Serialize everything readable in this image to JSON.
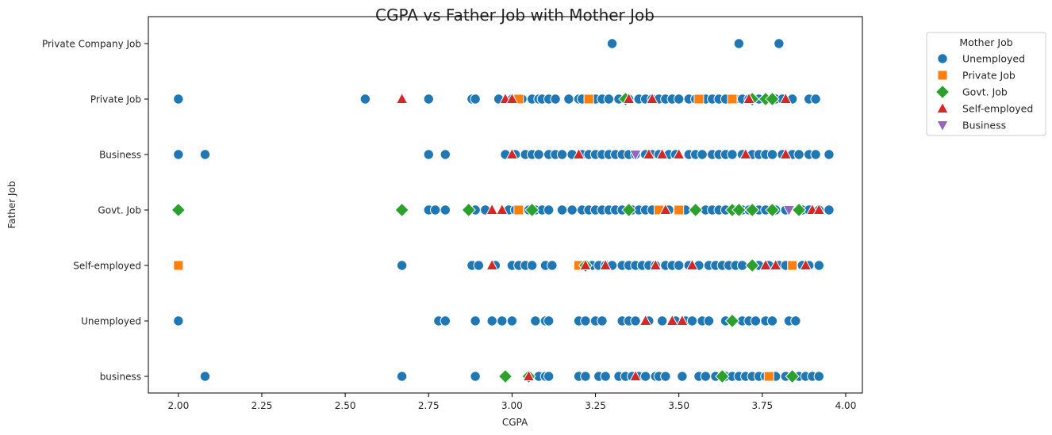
{
  "chart_data": {
    "type": "scatter",
    "title": "CGPA vs Father Job with Mother Job",
    "xlabel": "CGPA",
    "ylabel": "Father Job",
    "xlim": [
      1.91,
      4.05
    ],
    "x_ticks": [
      "2.00",
      "2.25",
      "2.50",
      "2.75",
      "3.00",
      "3.25",
      "3.50",
      "3.75",
      "4.00"
    ],
    "y_categories": [
      "Private Company Job",
      "Private Job",
      "Business",
      "Govt. Job",
      "Self-employed",
      "Unemployed",
      "business"
    ],
    "legend": {
      "title": "Mother Job",
      "position": "outside-upper-right",
      "entries": [
        {
          "label": "Unemployed",
          "color": "#1f77b4",
          "marker": "circle"
        },
        {
          "label": "Private Job",
          "color": "#ff7f0e",
          "marker": "square"
        },
        {
          "label": "Govt. Job",
          "color": "#2ca02c",
          "marker": "diamond"
        },
        {
          "label": "Self-employed",
          "color": "#d62728",
          "marker": "triangle-up"
        },
        {
          "label": "Business",
          "color": "#9467bd",
          "marker": "triangle-down"
        }
      ]
    },
    "series": [
      {
        "name": "Unemployed",
        "points": {
          "Private Company Job": [
            3.3,
            3.68,
            3.8
          ],
          "Private Job": [
            2.0,
            2.56,
            2.75,
            2.88,
            2.89,
            2.96,
            3.0,
            3.03,
            3.06,
            3.08,
            3.09,
            3.11,
            3.13,
            3.17,
            3.2,
            3.21,
            3.23,
            3.25,
            3.27,
            3.29,
            3.32,
            3.35,
            3.38,
            3.4,
            3.42,
            3.44,
            3.46,
            3.48,
            3.5,
            3.53,
            3.55,
            3.58,
            3.6,
            3.62,
            3.64,
            3.67,
            3.69,
            3.71,
            3.74,
            3.76,
            3.79,
            3.81,
            3.84,
            3.89,
            3.91
          ],
          "Business": [
            2.0,
            2.08,
            2.75,
            2.8,
            2.98,
            3.01,
            3.04,
            3.06,
            3.08,
            3.11,
            3.13,
            3.15,
            3.18,
            3.21,
            3.23,
            3.25,
            3.27,
            3.29,
            3.31,
            3.33,
            3.35,
            3.37,
            3.4,
            3.42,
            3.44,
            3.47,
            3.49,
            3.53,
            3.55,
            3.57,
            3.6,
            3.62,
            3.64,
            3.66,
            3.69,
            3.72,
            3.74,
            3.76,
            3.78,
            3.81,
            3.84,
            3.86,
            3.89,
            3.91,
            3.95
          ],
          "Govt. Job": [
            2.75,
            2.77,
            2.8,
            2.89,
            2.92,
            2.99,
            3.01,
            3.05,
            3.07,
            3.09,
            3.11,
            3.15,
            3.18,
            3.21,
            3.23,
            3.25,
            3.27,
            3.29,
            3.31,
            3.33,
            3.36,
            3.38,
            3.4,
            3.42,
            3.45,
            3.47,
            3.5,
            3.52,
            3.55,
            3.58,
            3.6,
            3.62,
            3.64,
            3.67,
            3.69,
            3.71,
            3.74,
            3.76,
            3.79,
            3.82,
            3.87,
            3.89,
            3.92,
            3.95
          ],
          "Self-employed": [
            2.67,
            2.88,
            2.9,
            2.95,
            3.0,
            3.02,
            3.04,
            3.06,
            3.1,
            3.12,
            3.2,
            3.24,
            3.26,
            3.28,
            3.3,
            3.33,
            3.35,
            3.37,
            3.39,
            3.41,
            3.43,
            3.46,
            3.48,
            3.5,
            3.53,
            3.56,
            3.59,
            3.61,
            3.63,
            3.65,
            3.67,
            3.69,
            3.74,
            3.77,
            3.8,
            3.82,
            3.87,
            3.89,
            3.92
          ],
          "Unemployed": [
            2.0,
            2.78,
            2.8,
            2.89,
            2.94,
            2.97,
            3.0,
            3.07,
            3.1,
            3.11,
            3.2,
            3.22,
            3.25,
            3.27,
            3.33,
            3.35,
            3.37,
            3.41,
            3.45,
            3.49,
            3.52,
            3.54,
            3.57,
            3.59,
            3.64,
            3.66,
            3.69,
            3.71,
            3.73,
            3.76,
            3.78,
            3.83,
            3.85
          ],
          "business": [
            2.08,
            2.67,
            2.89,
            3.05,
            3.08,
            3.1,
            3.11,
            3.2,
            3.22,
            3.26,
            3.28,
            3.32,
            3.34,
            3.36,
            3.38,
            3.4,
            3.43,
            3.44,
            3.46,
            3.51,
            3.56,
            3.58,
            3.61,
            3.64,
            3.66,
            3.68,
            3.7,
            3.72,
            3.74,
            3.76,
            3.79,
            3.82,
            3.86,
            3.88,
            3.9,
            3.92
          ]
        }
      },
      {
        "name": "Private Job",
        "points": {
          "Private Company Job": [],
          "Private Job": [
            3.02,
            3.23,
            3.56,
            3.66
          ],
          "Business": [],
          "Govt. Job": [
            3.02,
            3.44,
            3.5
          ],
          "Self-employed": [
            2.0,
            3.2,
            3.84
          ],
          "Unemployed": [],
          "business": [
            3.77
          ]
        }
      },
      {
        "name": "Govt. Job",
        "points": {
          "Private Company Job": [],
          "Private Job": [
            3.34,
            3.72,
            3.76,
            3.78
          ],
          "Business": [],
          "Govt. Job": [
            2.0,
            2.67,
            2.87,
            3.06,
            3.35,
            3.55,
            3.66,
            3.68,
            3.72,
            3.78,
            3.86
          ],
          "Self-employed": [
            3.22,
            3.72
          ],
          "Unemployed": [
            3.66
          ],
          "business": [
            2.98,
            3.05,
            3.63,
            3.84
          ]
        }
      },
      {
        "name": "Self-employed",
        "points": {
          "Private Company Job": [],
          "Private Job": [
            2.67,
            2.98,
            3.0,
            3.35,
            3.42,
            3.71,
            3.82
          ],
          "Business": [
            3.0,
            3.2,
            3.41,
            3.45,
            3.5,
            3.7,
            3.82
          ],
          "Govt. Job": [
            2.94,
            2.97,
            3.46,
            3.9,
            3.92
          ],
          "Self-employed": [
            2.94,
            3.22,
            3.28,
            3.43,
            3.54,
            3.76,
            3.79,
            3.88
          ],
          "Unemployed": [
            3.4,
            3.48,
            3.51
          ],
          "business": [
            3.05,
            3.37
          ]
        }
      },
      {
        "name": "Business",
        "points": {
          "Private Company Job": [],
          "Private Job": [],
          "Business": [
            3.37
          ],
          "Govt. Job": [
            3.83
          ],
          "Self-employed": [],
          "Unemployed": [],
          "business": []
        }
      }
    ]
  }
}
